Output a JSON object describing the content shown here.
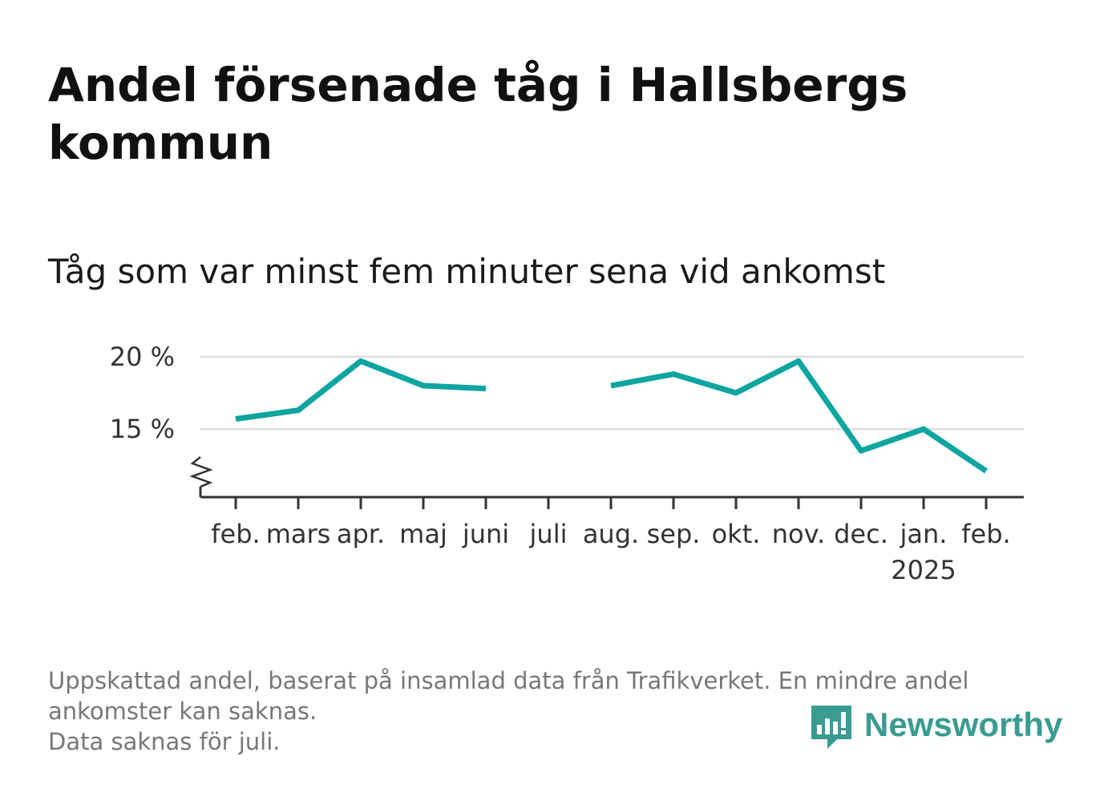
{
  "title": "Andel försenade tåg i Hallsbergs kommun",
  "subtitle": "Tåg som var minst fem minuter sena vid ankomst",
  "footnote": {
    "line1": "Uppskattad andel, baserat på insamlad data från Trafikverket. En mindre andel",
    "line2": "ankomster kan saknas.",
    "line3": "Data saknas för juli."
  },
  "logo": {
    "text": "Newsworthy",
    "icon": "bar-chart-speech-bubble-icon"
  },
  "colors": {
    "line": "#0ea5a0",
    "grid": "#dddddd",
    "axis": "#333333",
    "brand": "#3a9b91"
  },
  "chart_data": {
    "type": "line",
    "categories": [
      "feb.",
      "mars",
      "apr.",
      "maj",
      "juni",
      "juli",
      "aug.",
      "sep.",
      "okt.",
      "nov.",
      "dec.",
      "jan.",
      "feb."
    ],
    "category_sublabels": [
      "",
      "",
      "",
      "",
      "",
      "",
      "",
      "",
      "",
      "",
      "",
      "2025",
      ""
    ],
    "series": [
      {
        "values": [
          15.7,
          16.3,
          19.7,
          18.0,
          17.8,
          null,
          18.0,
          18.8,
          17.5,
          19.7,
          13.5,
          15.0,
          12.1
        ]
      }
    ],
    "y_ticks": [
      15,
      20
    ],
    "y_tick_labels": [
      "15 %",
      "20 %"
    ],
    "ylim": [
      10.3,
      20.2
    ],
    "axis_break": true,
    "grid": true,
    "legend": "none",
    "xlabel": "",
    "ylabel": ""
  }
}
